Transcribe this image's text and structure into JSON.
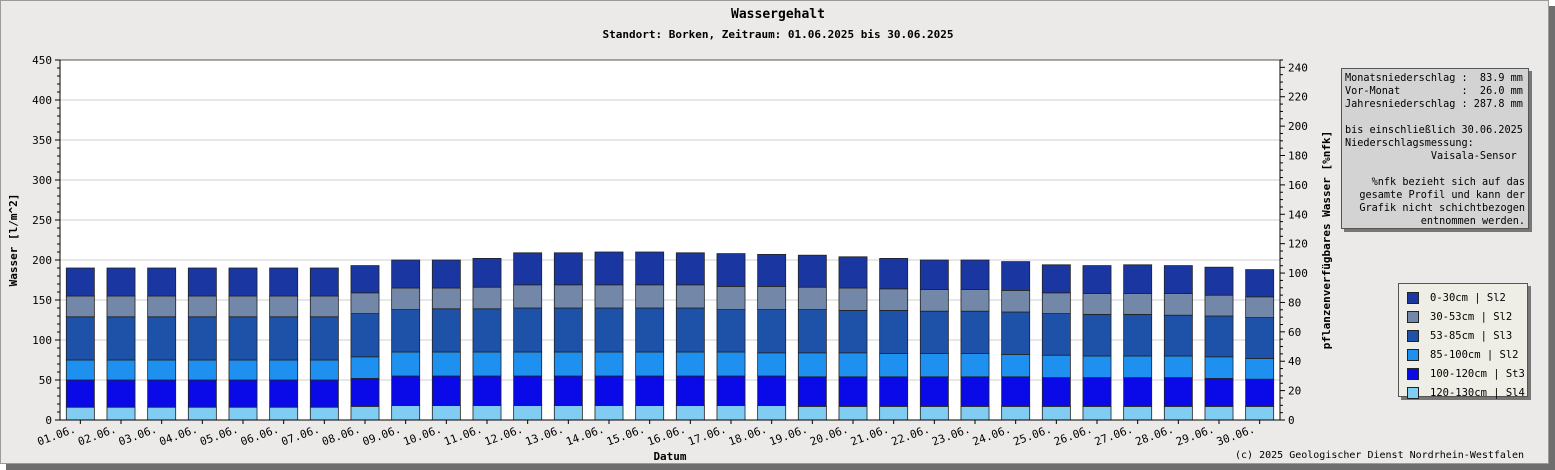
{
  "title": "Wassergehalt",
  "subtitle": "Standort: Borken, Zeitraum: 01.06.2025 bis 30.06.2025",
  "copyright": "(c) 2025 Geologischer Dienst Nordrhein-Westfalen",
  "info": {
    "lines": [
      "Monatsniederschlag :  83.9 mm",
      "Vor-Monat          :  26.0 mm",
      "Jahresniederschlag : 287.8 mm",
      "",
      "bis einschließlich 30.06.2025",
      "Niederschlagsmessung:",
      "              Vaisala-Sensor",
      "",
      "%nfk bezieht sich auf das",
      "gesamte Profil und kann der",
      "Grafik nicht schichtbezogen",
      "entnommen werden."
    ]
  },
  "colors": {
    "layer_0_30": "#1a36a0",
    "layer_30_53": "#7388a8",
    "layer_53_85": "#1d52a8",
    "layer_85_100": "#1e90f0",
    "layer_100_120": "#0a0ae8",
    "layer_120_130": "#80ccf2"
  },
  "chart_data": {
    "type": "bar",
    "stacked": true,
    "xlabel": "Datum",
    "ylabel": "Wasser [l/m^2]",
    "y2label": "pflanzenverfügbares Wasser [%nfk]",
    "ylim": [
      0,
      450
    ],
    "y2lim": [
      0,
      245
    ],
    "yticks": [
      0,
      50,
      100,
      150,
      200,
      250,
      300,
      350,
      400,
      450
    ],
    "y2ticks": [
      0,
      20,
      40,
      60,
      80,
      100,
      120,
      140,
      160,
      180,
      200,
      220,
      240
    ],
    "grid": true,
    "legend_position": "right",
    "categories": [
      "01.06.",
      "02.06.",
      "03.06.",
      "04.06.",
      "05.06.",
      "06.06.",
      "07.06.",
      "08.06.",
      "09.06.",
      "10.06.",
      "11.06.",
      "12.06.",
      "13.06.",
      "14.06.",
      "15.06.",
      "16.06.",
      "17.06.",
      "18.06.",
      "19.06.",
      "20.06.",
      "21.06.",
      "22.06.",
      "23.06.",
      "24.06.",
      "25.06.",
      "26.06.",
      "27.06.",
      "28.06.",
      "29.06.",
      "30.06."
    ],
    "series": [
      {
        "name": "120-130cm | Sl4",
        "color": "#80ccf2",
        "values": [
          16,
          16,
          16,
          16,
          16,
          16,
          16,
          17,
          18,
          18,
          18,
          18,
          18,
          18,
          18,
          18,
          18,
          18,
          17,
          17,
          17,
          17,
          17,
          17,
          17,
          17,
          17,
          17,
          17,
          17
        ]
      },
      {
        "name": "100-120cm | St3",
        "color": "#0a0ae8",
        "values": [
          34,
          34,
          34,
          34,
          34,
          34,
          34,
          35,
          37,
          37,
          37,
          37,
          37,
          37,
          37,
          37,
          37,
          37,
          37,
          37,
          37,
          37,
          37,
          37,
          36,
          36,
          36,
          36,
          35,
          34
        ]
      },
      {
        "name": "85-100cm | Sl2",
        "color": "#1e90f0",
        "values": [
          25,
          25,
          25,
          25,
          25,
          25,
          25,
          27,
          30,
          30,
          30,
          30,
          30,
          30,
          30,
          30,
          30,
          29,
          30,
          30,
          29,
          29,
          29,
          28,
          28,
          27,
          27,
          27,
          27,
          26
        ]
      },
      {
        "name": "53-85cm | Sl3",
        "color": "#1d52a8",
        "values": [
          54,
          54,
          54,
          54,
          54,
          54,
          54,
          54,
          53,
          54,
          54,
          55,
          55,
          55,
          55,
          55,
          53,
          54,
          54,
          53,
          54,
          53,
          53,
          53,
          52,
          52,
          52,
          51,
          51,
          51
        ]
      },
      {
        "name": "30-53cm | Sl2",
        "color": "#7388a8",
        "values": [
          26,
          26,
          26,
          26,
          26,
          26,
          26,
          26,
          27,
          26,
          27,
          29,
          29,
          29,
          29,
          29,
          29,
          29,
          28,
          28,
          27,
          27,
          27,
          27,
          26,
          26,
          26,
          27,
          26,
          26
        ]
      },
      {
        "name": "0-30cm | Sl2",
        "color": "#1a36a0",
        "values": [
          35,
          35,
          35,
          35,
          35,
          35,
          35,
          34,
          35,
          35,
          36,
          40,
          40,
          41,
          41,
          40,
          41,
          40,
          40,
          39,
          38,
          37,
          37,
          36,
          35,
          35,
          36,
          35,
          35,
          34
        ]
      }
    ],
    "legend_order": [
      "0-30cm | Sl2",
      "30-53cm | Sl2",
      "53-85cm | Sl3",
      "85-100cm | Sl2",
      "100-120cm | St3",
      "120-130cm | Sl4"
    ]
  }
}
